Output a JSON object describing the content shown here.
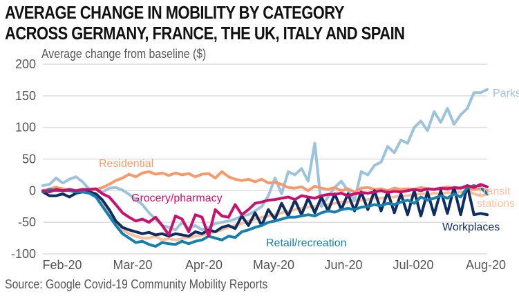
{
  "chart_data": {
    "type": "line",
    "title": "AVERAGE CHANGE IN MOBILITY BY CATEGORY ACROSS GERMANY, FRANCE, THE UK, ITALY AND SPAIN",
    "title_lines": [
      "AVERAGE CHANGE IN MOBILITY BY CATEGORY",
      "ACROSS GERMANY, FRANCE, THE UK, ITALY AND SPAIN"
    ],
    "ylabel": "Average change from baseline ($)",
    "xlabel": "",
    "source": "Source: Google Covid-19 Community Mobility Reports",
    "ylim": [
      -100,
      200
    ],
    "yticks": [
      200,
      150,
      100,
      50,
      0,
      -50,
      -100
    ],
    "xticks": [
      "Feb-20",
      "Mar-20",
      "Apr-20",
      "May-20",
      "Jun-20",
      "Jul-020",
      "Aug-20"
    ],
    "grid": true,
    "x_start": "2020-02-15",
    "x_step_days": 3,
    "series": [
      {
        "name": "Parks",
        "label": "Parks",
        "color": "#9dc3dc",
        "values": [
          8,
          10,
          20,
          12,
          18,
          22,
          14,
          2,
          3,
          -2,
          4,
          5,
          1,
          -6,
          -14,
          -22,
          -35,
          -45,
          -55,
          -58,
          -62,
          -50,
          -60,
          -55,
          -62,
          -58,
          -52,
          -50,
          -48,
          -45,
          -40,
          -38,
          -32,
          -25,
          -8,
          20,
          -5,
          30,
          25,
          35,
          15,
          75,
          -25,
          -10,
          5,
          15,
          0,
          -15,
          30,
          25,
          40,
          45,
          70,
          60,
          80,
          75,
          100,
          110,
          95,
          125,
          108,
          130,
          105,
          120,
          130,
          155,
          155,
          160
        ]
      },
      {
        "name": "Residential",
        "label": "Residential",
        "color": "#f79a6b",
        "values": [
          0,
          2,
          5,
          3,
          0,
          0,
          -2,
          0,
          2,
          5,
          10,
          16,
          20,
          26,
          22,
          28,
          30,
          26,
          28,
          24,
          28,
          25,
          27,
          22,
          26,
          27,
          20,
          30,
          22,
          18,
          16,
          18,
          14,
          18,
          12,
          13,
          10,
          5,
          4,
          6,
          0,
          7,
          4,
          2,
          5,
          0,
          3,
          -2,
          4,
          5,
          2,
          3,
          0,
          4,
          2,
          3,
          2,
          5,
          3,
          2,
          4,
          6,
          2,
          5,
          4,
          2,
          3,
          0
        ]
      },
      {
        "name": "Grocery/pharmacy",
        "label": "Grocery/pharmacy",
        "color": "#c8106e",
        "values": [
          0,
          -2,
          2,
          0,
          2,
          0,
          2,
          2,
          3,
          -5,
          -10,
          -22,
          -35,
          -42,
          -48,
          -45,
          -50,
          -42,
          -55,
          -70,
          -40,
          -45,
          -65,
          -38,
          -42,
          -72,
          -30,
          -40,
          -42,
          -22,
          -38,
          -30,
          -20,
          -18,
          -15,
          -14,
          -12,
          -10,
          -14,
          -8,
          -10,
          -12,
          -8,
          -6,
          -6,
          -4,
          -8,
          -5,
          -3,
          -4,
          -2,
          0,
          -3,
          -1,
          -2,
          0,
          2,
          0,
          3,
          2,
          4,
          3,
          5,
          4,
          8,
          5,
          10,
          6
        ]
      },
      {
        "name": "Retail/recreation",
        "label": "Retail/recreation",
        "color": "#1580ad",
        "values": [
          -2,
          2,
          0,
          0,
          0,
          -2,
          -2,
          -4,
          -10,
          -25,
          -40,
          -55,
          -68,
          -75,
          -82,
          -80,
          -85,
          -88,
          -82,
          -84,
          -85,
          -80,
          -84,
          -80,
          -78,
          -72,
          -75,
          -78,
          -72,
          -74,
          -65,
          -62,
          -58,
          -55,
          -50,
          -48,
          -45,
          -42,
          -42,
          -40,
          -38,
          -40,
          -35,
          -32,
          -34,
          -30,
          -28,
          -30,
          -26,
          -25,
          -22,
          -24,
          -20,
          -22,
          -18,
          -15,
          -20,
          -10,
          -15,
          -12,
          -8,
          -12,
          -5,
          -10,
          5,
          8,
          5,
          -5
        ]
      },
      {
        "name": "Transit stations",
        "label": "Transit stations",
        "color": "#fbbf9e",
        "values": [
          0,
          3,
          6,
          0,
          0,
          -2,
          -2,
          -4,
          -8,
          -20,
          -38,
          -52,
          -62,
          -68,
          -72,
          -75,
          -75,
          -72,
          -78,
          -76,
          -78,
          -76,
          -74,
          -72,
          -70,
          -68,
          -65,
          -62,
          -58,
          -55,
          -52,
          -48,
          -45,
          -42,
          -40,
          -38,
          -35,
          -32,
          -30,
          -28,
          -26,
          -25,
          -22,
          -22,
          -20,
          -18,
          -18,
          -16,
          -15,
          -14,
          -12,
          -12,
          -10,
          -10,
          -8,
          -8,
          -6,
          -5,
          -6,
          -4,
          -5,
          -3,
          -4,
          -2,
          0,
          -5,
          -8,
          -6
        ]
      },
      {
        "name": "Workplaces",
        "label": "Workplaces",
        "color": "#0f2d5e",
        "values": [
          -2,
          -8,
          -8,
          -5,
          -10,
          -4,
          -2,
          -2,
          -5,
          -15,
          -30,
          -48,
          -58,
          -62,
          -65,
          -68,
          -66,
          -70,
          -68,
          -72,
          -68,
          -70,
          -72,
          -65,
          -68,
          -62,
          -65,
          -58,
          -55,
          -60,
          -40,
          -55,
          -35,
          -55,
          -30,
          -45,
          -20,
          -40,
          -15,
          -38,
          -12,
          -35,
          -10,
          -32,
          -5,
          -30,
          -5,
          -32,
          -2,
          -30,
          0,
          -32,
          -2,
          -35,
          -5,
          -38,
          0,
          -40,
          -2,
          -38,
          0,
          -36,
          5,
          -38,
          8,
          -38,
          -36,
          -38
        ]
      }
    ]
  }
}
